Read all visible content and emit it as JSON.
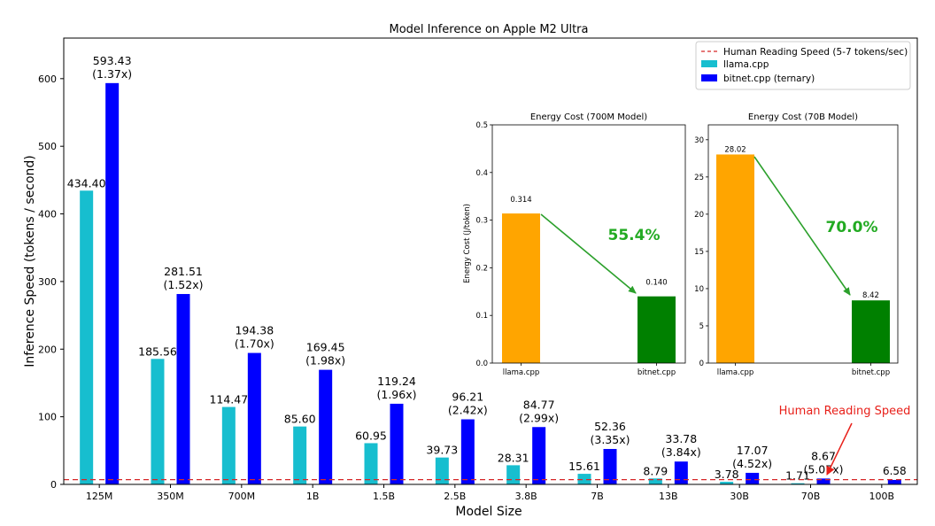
{
  "chart_data": [
    {
      "type": "bar",
      "title": "Model Inference on Apple M2 Ultra",
      "xlabel": "Model Size",
      "ylabel": "Inference Speed (tokens / second)",
      "ylim": [
        0,
        660
      ],
      "yticks": [
        0,
        100,
        200,
        300,
        400,
        500,
        600
      ],
      "categories": [
        "125M",
        "350M",
        "700M",
        "1B",
        "1.5B",
        "2.5B",
        "3.8B",
        "7B",
        "13B",
        "30B",
        "70B",
        "100B"
      ],
      "series": [
        {
          "name": "llama.cpp",
          "color": "#17becf",
          "values": [
            434.4,
            185.56,
            114.47,
            85.6,
            60.95,
            39.73,
            28.31,
            15.61,
            8.79,
            3.78,
            1.71,
            null
          ],
          "labels": [
            "434.40",
            "185.56",
            "114.47",
            "85.60",
            "60.95",
            "39.73",
            "28.31",
            "15.61",
            "8.79",
            "3.78",
            "1.71",
            ""
          ]
        },
        {
          "name": "bitnet.cpp (ternary)",
          "color": "#0000ff",
          "values": [
            593.43,
            281.51,
            194.38,
            169.45,
            119.24,
            96.21,
            84.77,
            52.36,
            33.78,
            17.07,
            8.67,
            6.58
          ],
          "labels": [
            "593.43",
            "281.51",
            "194.38",
            "169.45",
            "119.24",
            "96.21",
            "84.77",
            "52.36",
            "33.78",
            "17.07",
            "8.67",
            "6.58"
          ],
          "speedups": [
            "(1.37x)",
            "(1.52x)",
            "(1.70x)",
            "(1.98x)",
            "(1.96x)",
            "(2.42x)",
            "(2.99x)",
            "(3.35x)",
            "(3.84x)",
            "(4.52x)",
            "(5.07x)",
            ""
          ]
        }
      ],
      "reference_line": {
        "name": "Human Reading Speed (5-7 tokens/sec)",
        "value": 7,
        "color": "#d62728",
        "style": "dashed"
      },
      "annotation": {
        "text": "Human Reading Speed",
        "color": "#e8201a"
      },
      "legend": "top-right",
      "grid": false
    },
    {
      "type": "bar",
      "title": "Energy Cost (700M Model)",
      "ylabel": "Energy Cost (J/token)",
      "ylim": [
        0,
        0.5
      ],
      "yticks": [
        "0.0",
        "0.1",
        "0.2",
        "0.3",
        "0.4",
        "0.5"
      ],
      "categories": [
        "llama.cpp",
        "bitnet.cpp"
      ],
      "values": [
        0.314,
        0.14
      ],
      "labels": [
        "0.314",
        "0.140"
      ],
      "colors": [
        "#ffa500",
        "#008000"
      ],
      "reduction": "55.4%",
      "grid": false
    },
    {
      "type": "bar",
      "title": "Energy Cost (70B Model)",
      "ylim": [
        0,
        32
      ],
      "yticks": [
        "0",
        "5",
        "10",
        "15",
        "20",
        "25",
        "30"
      ],
      "categories": [
        "llama.cpp",
        "bitnet.cpp"
      ],
      "values": [
        28.02,
        8.42
      ],
      "labels": [
        "28.02",
        "8.42"
      ],
      "colors": [
        "#ffa500",
        "#008000"
      ],
      "reduction": "70.0%",
      "grid": false
    }
  ]
}
